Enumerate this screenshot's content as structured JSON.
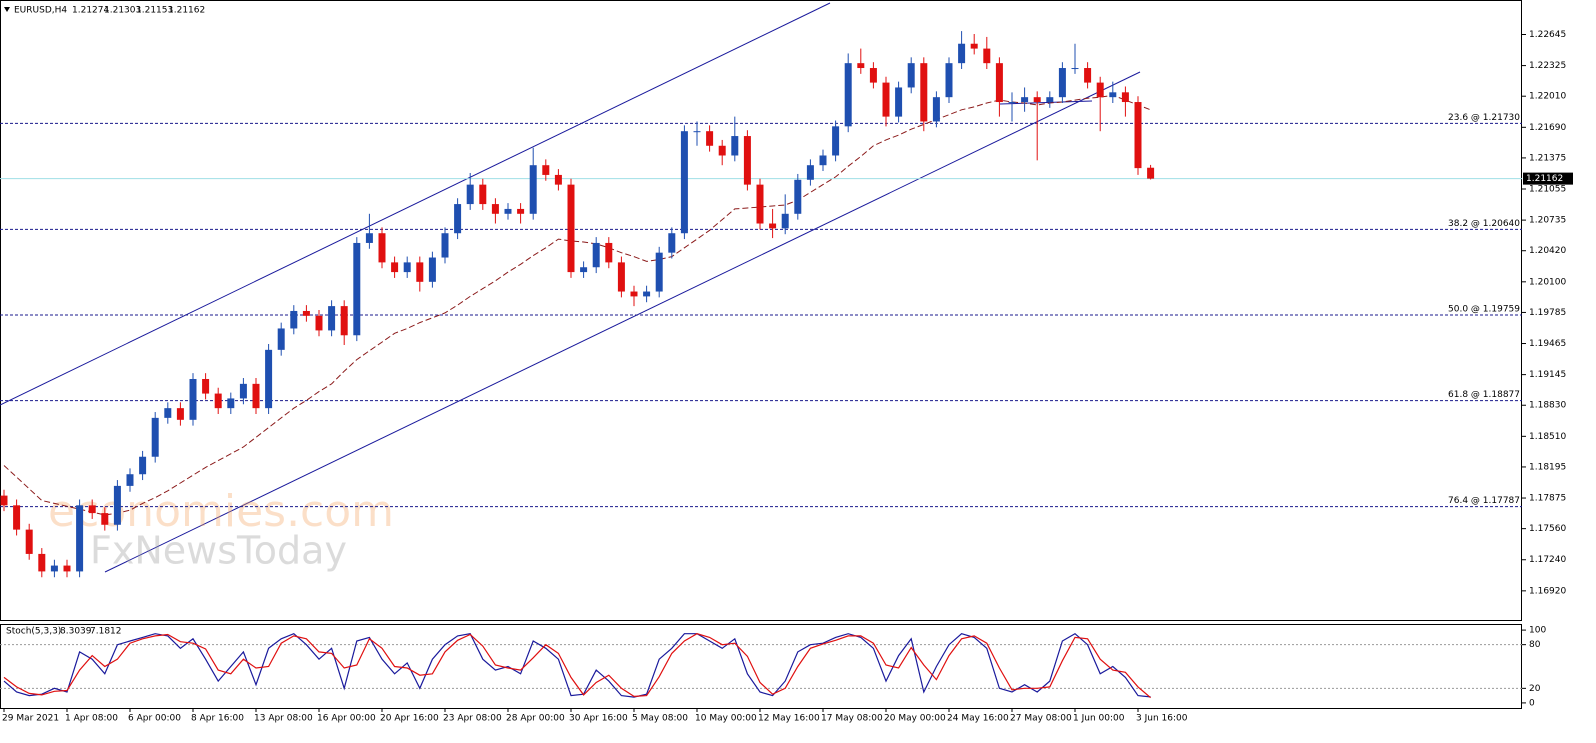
{
  "chart_data": {
    "type": "candlestick",
    "symbol": "EURUSD,H4",
    "up_color": "#1f4fb0",
    "down_color": "#e01010",
    "ylim": [
      1.1662,
      1.23
    ],
    "yticks": [
      1.22645,
      1.22325,
      {
        "value": 1.2201,
        "label": "1.22010"
      },
      {
        "value": 1.2169,
        "label": "1.21690"
      },
      1.21375,
      1.21055,
      1.20735,
      {
        "value": 1.2042,
        "label": "1.20420"
      },
      {
        "value": 1.201,
        "label": "1.20100"
      },
      1.19785,
      1.19465,
      1.19145,
      {
        "value": 1.1883,
        "label": "1.18830"
      },
      {
        "value": 1.1851,
        "label": "1.18510"
      },
      1.18195,
      1.17875,
      {
        "value": 1.1756,
        "label": "1.17560"
      },
      {
        "value": 1.1724,
        "label": "1.17240"
      },
      {
        "value": 1.1692,
        "label": "1.16920"
      }
    ],
    "categories": [
      "29 Mar 2021",
      null,
      null,
      null,
      null,
      "1 Apr 08:00",
      null,
      null,
      null,
      null,
      "6 Apr 00:00",
      null,
      null,
      null,
      null,
      "8 Apr 16:00",
      null,
      null,
      null,
      null,
      "13 Apr 08:00",
      null,
      null,
      null,
      null,
      "16 Apr 00:00",
      null,
      null,
      null,
      null,
      "20 Apr 16:00",
      null,
      null,
      null,
      null,
      "23 Apr 08:00",
      null,
      null,
      null,
      null,
      "28 Apr 00:00",
      null,
      null,
      null,
      null,
      "30 Apr 16:00",
      null,
      null,
      null,
      null,
      "5 May 08:00",
      null,
      null,
      null,
      null,
      "10 May 00:00",
      null,
      null,
      null,
      null,
      "12 May 16:00",
      null,
      null,
      null,
      null,
      "17 May 08:00",
      null,
      null,
      null,
      null,
      "20 May 00:00",
      null,
      null,
      null,
      null,
      "24 May 16:00",
      null,
      null,
      null,
      null,
      "27 May 08:00",
      null,
      null,
      null,
      null,
      "1 Jun 00:00",
      null,
      null,
      null,
      null,
      "3 Jun 16:00",
      null
    ],
    "ohlc": [
      [
        1.179,
        1.1796,
        1.1774,
        1.178
      ],
      [
        1.178,
        1.1786,
        1.1749,
        1.1755
      ],
      [
        1.1755,
        1.1761,
        1.1724,
        1.173
      ],
      [
        1.173,
        1.1736,
        1.1706,
        1.1712
      ],
      [
        1.1712,
        1.1724,
        1.1706,
        1.1718
      ],
      [
        1.1718,
        1.1724,
        1.1706,
        1.1712
      ],
      [
        1.1712,
        1.1786,
        1.1706,
        1.178
      ],
      [
        1.178,
        1.1786,
        1.1766,
        1.1772
      ],
      [
        1.1772,
        1.1778,
        1.1754,
        1.176
      ],
      [
        1.176,
        1.1806,
        1.1754,
        1.18
      ],
      [
        1.18,
        1.1818,
        1.1794,
        1.1812
      ],
      [
        1.1812,
        1.1836,
        1.1806,
        1.183
      ],
      [
        1.183,
        1.1876,
        1.1824,
        1.187
      ],
      [
        1.187,
        1.1886,
        1.1864,
        1.188
      ],
      [
        1.188,
        1.1886,
        1.1862,
        1.1868
      ],
      [
        1.1868,
        1.1916,
        1.1862,
        1.191
      ],
      [
        1.191,
        1.1916,
        1.1889,
        1.1895
      ],
      [
        1.1895,
        1.1901,
        1.1874,
        1.188
      ],
      [
        1.188,
        1.1896,
        1.1874,
        1.189
      ],
      [
        1.189,
        1.1911,
        1.1884,
        1.1905
      ],
      [
        1.1905,
        1.1911,
        1.1874,
        1.188
      ],
      [
        1.188,
        1.1946,
        1.1874,
        1.194
      ],
      [
        1.194,
        1.1968,
        1.1934,
        1.1962
      ],
      [
        1.1962,
        1.1986,
        1.1956,
        1.198
      ],
      [
        1.198,
        1.1986,
        1.1969,
        1.1975
      ],
      [
        1.1975,
        1.1981,
        1.1954,
        1.196
      ],
      [
        1.196,
        1.1991,
        1.1954,
        1.1985
      ],
      [
        1.1985,
        1.1991,
        1.1945,
        1.1955
      ],
      [
        1.1955,
        1.2056,
        1.1949,
        1.205
      ],
      [
        1.205,
        1.208,
        1.2044,
        1.206
      ],
      [
        1.206,
        1.2066,
        1.2024,
        1.203
      ],
      [
        1.203,
        1.2036,
        1.2014,
        1.202
      ],
      [
        1.202,
        1.2036,
        1.2014,
        1.203
      ],
      [
        1.203,
        1.2036,
        1.2,
        1.201
      ],
      [
        1.201,
        1.2041,
        1.2004,
        1.2035
      ],
      [
        1.2035,
        1.2066,
        1.2029,
        1.206
      ],
      [
        1.206,
        1.2096,
        1.2054,
        1.209
      ],
      [
        1.209,
        1.2122,
        1.2084,
        1.211
      ],
      [
        1.211,
        1.2116,
        1.2084,
        1.209
      ],
      [
        1.209,
        1.2096,
        1.207,
        1.208
      ],
      [
        1.208,
        1.2091,
        1.2074,
        1.2085
      ],
      [
        1.2085,
        1.2091,
        1.207,
        1.208
      ],
      [
        1.208,
        1.2148,
        1.2074,
        1.213
      ],
      [
        1.213,
        1.2136,
        1.2114,
        1.212
      ],
      [
        1.212,
        1.2126,
        1.2104,
        1.211
      ],
      [
        1.211,
        1.2116,
        1.2014,
        1.202
      ],
      [
        1.202,
        1.2031,
        1.2014,
        1.2025
      ],
      [
        1.2025,
        1.2056,
        1.2019,
        1.205
      ],
      [
        1.205,
        1.2056,
        1.2024,
        1.203
      ],
      [
        1.203,
        1.2036,
        1.1994,
        1.2
      ],
      [
        1.2,
        1.2006,
        1.1985,
        1.1995
      ],
      [
        1.1995,
        1.2006,
        1.1989,
        1.2
      ],
      [
        1.2,
        1.2046,
        1.1994,
        1.204
      ],
      [
        1.204,
        1.2066,
        1.2034,
        1.206
      ],
      [
        1.206,
        1.2171,
        1.2054,
        1.2165
      ],
      [
        1.2165,
        1.2175,
        1.215,
        1.2165
      ],
      [
        1.2165,
        1.2171,
        1.2144,
        1.215
      ],
      [
        1.215,
        1.2156,
        1.213,
        1.214
      ],
      [
        1.214,
        1.218,
        1.2134,
        1.216
      ],
      [
        1.216,
        1.2166,
        1.2104,
        1.211
      ],
      [
        1.211,
        1.2116,
        1.2064,
        1.207
      ],
      [
        1.207,
        1.2085,
        1.2055,
        1.2065
      ],
      [
        1.2065,
        1.21,
        1.2059,
        1.208
      ],
      [
        1.208,
        1.2121,
        1.2074,
        1.2115
      ],
      [
        1.2115,
        1.2136,
        1.2109,
        1.213
      ],
      [
        1.213,
        1.2146,
        1.2124,
        1.214
      ],
      [
        1.214,
        1.2176,
        1.2134,
        1.217
      ],
      [
        1.217,
        1.2245,
        1.2164,
        1.2235
      ],
      [
        1.2235,
        1.225,
        1.2224,
        1.223
      ],
      [
        1.223,
        1.2236,
        1.2209,
        1.2215
      ],
      [
        1.2215,
        1.2221,
        1.217,
        1.218
      ],
      [
        1.218,
        1.2216,
        1.2174,
        1.221
      ],
      [
        1.221,
        1.2241,
        1.2204,
        1.2235
      ],
      [
        1.2235,
        1.2241,
        1.2165,
        1.2175
      ],
      [
        1.2175,
        1.2206,
        1.2169,
        1.22
      ],
      [
        1.22,
        1.2241,
        1.2194,
        1.2235
      ],
      [
        1.2235,
        1.2268,
        1.2229,
        1.2255
      ],
      [
        1.2255,
        1.2265,
        1.2244,
        1.225
      ],
      [
        1.225,
        1.2262,
        1.2229,
        1.2235
      ],
      [
        1.2235,
        1.2241,
        1.218,
        1.2195
      ],
      [
        1.2195,
        1.2205,
        1.2175,
        1.2195
      ],
      [
        1.2195,
        1.221,
        1.2185,
        1.22
      ],
      [
        1.22,
        1.2206,
        1.2135,
        1.2195
      ],
      [
        1.2195,
        1.2206,
        1.2189,
        1.22
      ],
      [
        1.22,
        1.2236,
        1.2194,
        1.223
      ],
      [
        1.223,
        1.2255,
        1.2224,
        1.223
      ],
      [
        1.223,
        1.2236,
        1.2209,
        1.2215
      ],
      [
        1.2215,
        1.2221,
        1.2165,
        1.22
      ],
      [
        1.22,
        1.2216,
        1.2194,
        1.2205
      ],
      [
        1.2205,
        1.2211,
        1.218,
        1.2195
      ],
      [
        1.2195,
        1.2201,
        1.212,
        1.2127
      ],
      [
        1.21274,
        1.21303,
        1.21153,
        1.21162
      ]
    ],
    "moving_average": {
      "color": "#8b1a1a",
      "values": [
        1.1821,
        1.1809,
        1.1797,
        1.1785,
        1.1782,
        1.1779,
        1.1776,
        1.1773,
        1.177,
        1.1772,
        1.1775,
        1.1782,
        1.1788,
        1.1795,
        1.1803,
        1.1811,
        1.1819,
        1.1826,
        1.1833,
        1.184,
        1.185,
        1.186,
        1.187,
        1.188,
        1.1888,
        1.1897,
        1.1905,
        1.1918,
        1.193,
        1.1939,
        1.1948,
        1.1957,
        1.1962,
        1.1968,
        1.1973,
        1.1978,
        1.1986,
        1.1995,
        1.2003,
        1.2011,
        1.202,
        1.2028,
        1.2037,
        1.2045,
        1.2054,
        1.2052,
        1.2051,
        1.2049,
        1.2045,
        1.204,
        1.2036,
        1.2031,
        1.2033,
        1.2036,
        1.2045,
        1.2054,
        1.2063,
        1.2074,
        1.2085,
        1.2086,
        1.2087,
        1.2088,
        1.2089,
        1.2094,
        1.2102,
        1.211,
        1.2118,
        1.2129,
        1.2139,
        1.215,
        1.2156,
        1.2161,
        1.2167,
        1.2172,
        1.2177,
        1.2182,
        1.2187,
        1.219,
        1.2194,
        1.2197,
        1.2195,
        1.2194,
        1.2192,
        1.2194,
        1.2195,
        1.2197,
        1.2199,
        1.22,
        1.2202,
        1.2197,
        1.2192,
        1.2187
      ]
    },
    "fib_color": "#1a1a8c",
    "fib_levels": [
      {
        "value": 1.2173,
        "label": "23.6 @ 1.21730"
      },
      {
        "value": 1.2064,
        "label": "38.2 @ 1.20640"
      },
      {
        "value": 1.19759,
        "label": "50.0 @ 1.19759"
      },
      {
        "value": 1.18877,
        "label": "61.8 @ 1.18877"
      },
      {
        "value": 1.17787,
        "label": "76.4 @ 1.17787"
      }
    ],
    "price_line_color": "#9fdfe6",
    "watermarks": [
      "economies.com",
      "FxNewsToday"
    ],
    "indicator": {
      "type": "line",
      "name": "Stoch(5,3,3)",
      "ylim": [
        -7,
        107
      ],
      "yticks": [
        100,
        80,
        20,
        0
      ],
      "levels": [
        80,
        20
      ],
      "series": [
        {
          "color": "#1a1a9c",
          "values": [
            30,
            15,
            10,
            12,
            20,
            15,
            70,
            60,
            40,
            80,
            85,
            90,
            95,
            92,
            75,
            88,
            60,
            30,
            50,
            70,
            25,
            75,
            88,
            95,
            80,
            60,
            75,
            20,
            85,
            90,
            60,
            40,
            55,
            20,
            60,
            80,
            92,
            95,
            60,
            45,
            50,
            40,
            85,
            75,
            60,
            10,
            12,
            45,
            30,
            10,
            8,
            12,
            60,
            75,
            95,
            95,
            85,
            75,
            88,
            40,
            15,
            10,
            30,
            70,
            80,
            82,
            90,
            95,
            90,
            75,
            30,
            65,
            88,
            15,
            50,
            80,
            95,
            90,
            75,
            20,
            15,
            25,
            15,
            30,
            85,
            95,
            80,
            40,
            50,
            35,
            10,
            8.3039
          ]
        },
        {
          "color": "#e01010",
          "values": [
            35,
            22,
            13,
            11,
            16,
            17,
            45,
            65,
            50,
            60,
            82,
            88,
            92,
            94,
            84,
            82,
            74,
            45,
            40,
            60,
            48,
            50,
            82,
            92,
            88,
            70,
            68,
            48,
            52,
            88,
            75,
            50,
            48,
            38,
            40,
            70,
            86,
            94,
            78,
            52,
            48,
            45,
            62,
            80,
            68,
            35,
            11,
            28,
            38,
            20,
            9,
            10,
            36,
            68,
            85,
            95,
            90,
            80,
            82,
            64,
            28,
            12,
            20,
            50,
            75,
            81,
            86,
            92,
            92,
            82,
            52,
            48,
            76,
            52,
            32,
            65,
            88,
            92,
            82,
            48,
            18,
            20,
            20,
            22,
            58,
            90,
            88,
            60,
            45,
            42,
            22,
            7.1812
          ]
        }
      ]
    }
  }
}
